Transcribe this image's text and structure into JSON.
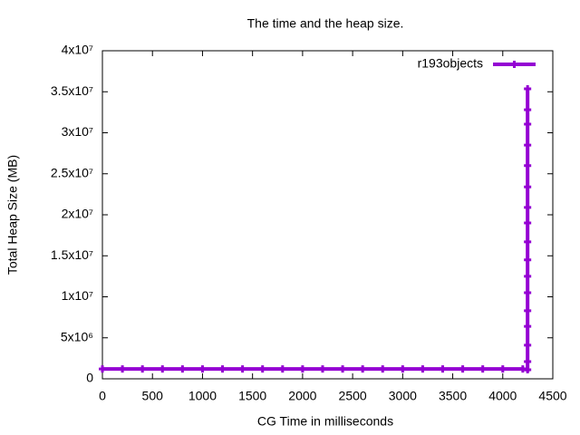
{
  "chart_data": {
    "type": "line",
    "title": "The time and the heap size.",
    "x_label": "CG Time in milliseconds",
    "y_label": "Total Heap Size (MB)",
    "xlim": [
      0,
      4500
    ],
    "xticks": [
      0,
      500,
      1000,
      1500,
      2000,
      2500,
      3000,
      3500,
      4000,
      4500
    ],
    "ylim": [
      0,
      40000000
    ],
    "yticks": [
      0,
      {
        "value": 5000000,
        "label": "5x10⁶"
      },
      {
        "value": 10000000,
        "label": "1x10⁷"
      },
      {
        "value": 15000000,
        "label": "1.5x10⁷"
      },
      {
        "value": 20000000,
        "label": "2x10⁷"
      },
      {
        "value": 25000000,
        "label": "2.5x10⁷"
      },
      {
        "value": 30000000,
        "label": "3x10⁷"
      },
      {
        "value": 35000000,
        "label": "3.5x10⁷"
      },
      {
        "value": 40000000,
        "label": "4x10⁷"
      }
    ],
    "grid": false,
    "legend": "top-right",
    "series": [
      {
        "name": "r193objects",
        "color": "#9400d3",
        "x": [
          0,
          200,
          400,
          600,
          800,
          1000,
          1200,
          1400,
          1600,
          1800,
          2000,
          2200,
          2400,
          2600,
          2800,
          3000,
          3200,
          3400,
          3600,
          3800,
          4000,
          4200,
          4248,
          4248,
          4248,
          4248,
          4248,
          4248,
          4248,
          4248,
          4248,
          4248,
          4248,
          4248,
          4248,
          4248,
          4248,
          4248,
          4248
        ],
        "values": [
          1200000,
          1200000,
          1200000,
          1200000,
          1200000,
          1200000,
          1200000,
          1200000,
          1200000,
          1200000,
          1200000,
          1200000,
          1200000,
          1200000,
          1200000,
          1200000,
          1200000,
          1200000,
          1200000,
          1200000,
          1200000,
          1200000,
          1100000,
          2100000,
          4100000,
          6400000,
          8300000,
          10500000,
          12500000,
          14500000,
          16700000,
          19000000,
          20900000,
          23400000,
          26000000,
          28500000,
          31050000,
          32800000,
          35360000
        ]
      }
    ]
  }
}
